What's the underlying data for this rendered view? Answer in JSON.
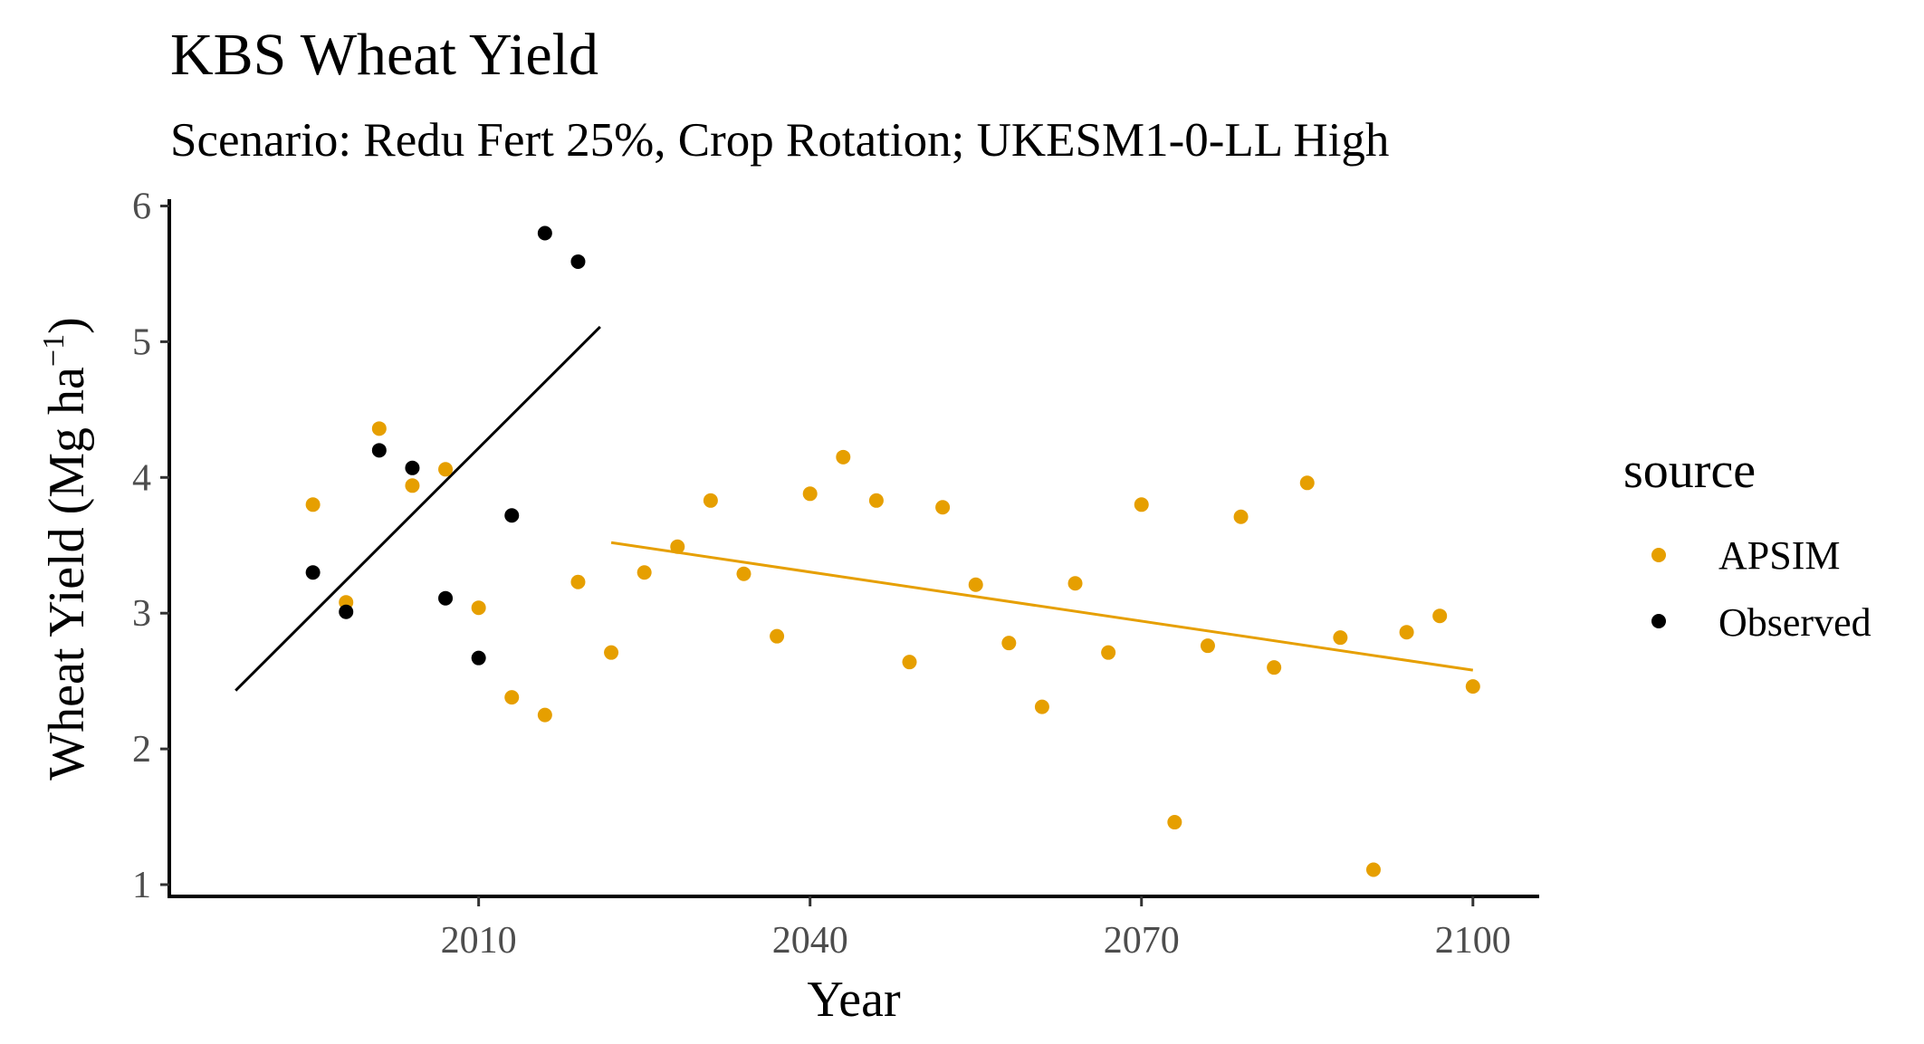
{
  "chart_data": {
    "type": "scatter",
    "title": "KBS Wheat Yield",
    "subtitle": "Scenario: Redu Fert 25%, Crop Rotation; UKESM1-0-LL High",
    "xlabel": "Year",
    "ylabel_main": "Wheat Yield (Mg ha",
    "ylabel_sup": "−1",
    "ylabel_close": ")",
    "xlim": [
      1982,
      2106
    ],
    "ylim": [
      0.9,
      6.05
    ],
    "x_ticks": [
      2010,
      2040,
      2070,
      2100
    ],
    "y_ticks": [
      1,
      2,
      3,
      4,
      5,
      6
    ],
    "grid": false,
    "legend": {
      "title": "source",
      "position": "right",
      "entries": [
        {
          "label": "APSIM",
          "color": "#E69F00"
        },
        {
          "label": "Observed",
          "color": "#000000"
        }
      ]
    },
    "series": [
      {
        "name": "APSIM",
        "color": "#E69F00",
        "points": [
          [
            1995,
            3.8
          ],
          [
            1998,
            3.08
          ],
          [
            2001,
            4.36
          ],
          [
            2004,
            3.94
          ],
          [
            2007,
            4.06
          ],
          [
            2010,
            3.04
          ],
          [
            2013,
            2.38
          ],
          [
            2016,
            2.25
          ],
          [
            2019,
            3.23
          ],
          [
            2022,
            2.71
          ],
          [
            2025,
            3.3
          ],
          [
            2028,
            3.49
          ],
          [
            2031,
            3.83
          ],
          [
            2034,
            3.29
          ],
          [
            2037,
            2.83
          ],
          [
            2040,
            3.88
          ],
          [
            2043,
            4.15
          ],
          [
            2046,
            3.83
          ],
          [
            2049,
            2.64
          ],
          [
            2052,
            3.78
          ],
          [
            2055,
            3.21
          ],
          [
            2058,
            2.78
          ],
          [
            2061,
            2.31
          ],
          [
            2064,
            3.22
          ],
          [
            2067,
            2.71
          ],
          [
            2070,
            3.8
          ],
          [
            2073,
            1.46
          ],
          [
            2076,
            2.76
          ],
          [
            2079,
            3.71
          ],
          [
            2082,
            2.6
          ],
          [
            2085,
            3.96
          ],
          [
            2088,
            2.82
          ],
          [
            2091,
            1.11
          ],
          [
            2094,
            2.86
          ],
          [
            2097,
            2.98
          ],
          [
            2100,
            2.46
          ]
        ],
        "trend": {
          "x": [
            2022,
            2100
          ],
          "y": [
            3.52,
            2.58
          ]
        }
      },
      {
        "name": "Observed",
        "color": "#000000",
        "points": [
          [
            1995,
            3.3
          ],
          [
            1998,
            3.01
          ],
          [
            2001,
            4.2
          ],
          [
            2004,
            4.07
          ],
          [
            2007,
            3.11
          ],
          [
            2010,
            2.67
          ],
          [
            2013,
            3.72
          ],
          [
            2016,
            5.8
          ],
          [
            2019,
            5.59
          ]
        ],
        "trend": {
          "x": [
            1988,
            2021
          ],
          "y": [
            2.43,
            5.11
          ]
        }
      }
    ]
  }
}
